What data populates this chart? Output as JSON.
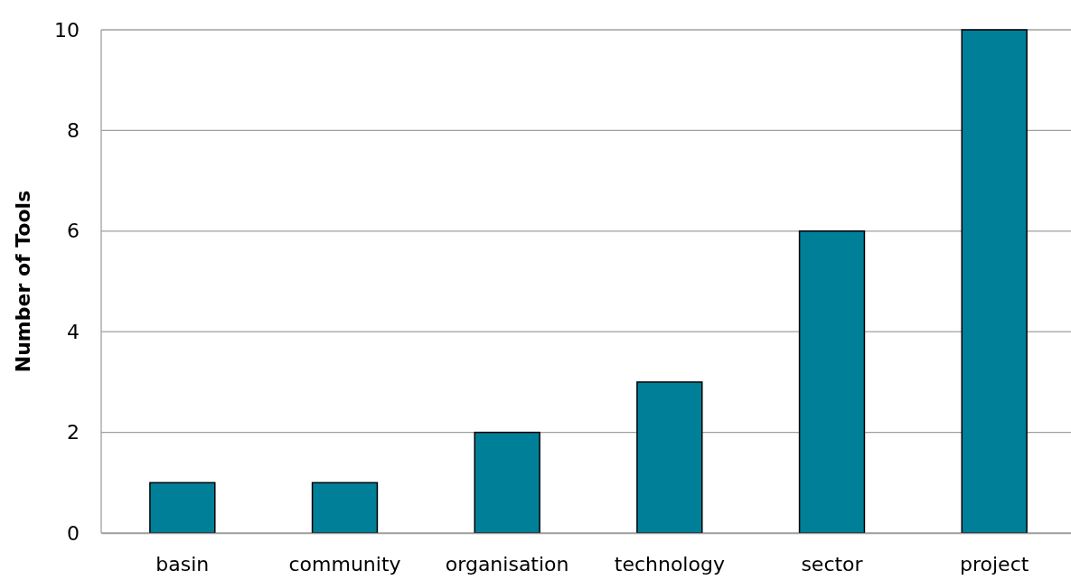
{
  "chart_data": {
    "type": "bar",
    "ylabel": "Number of Tools",
    "categories": [
      "basin",
      "community",
      "organisation",
      "technology",
      "sector",
      "project"
    ],
    "values": [
      1,
      1,
      2,
      3,
      6,
      10
    ],
    "color": "#007f99",
    "ylim": [
      0,
      10
    ],
    "yticks": [
      0,
      2,
      4,
      6,
      8,
      10
    ],
    "grid": "y"
  }
}
